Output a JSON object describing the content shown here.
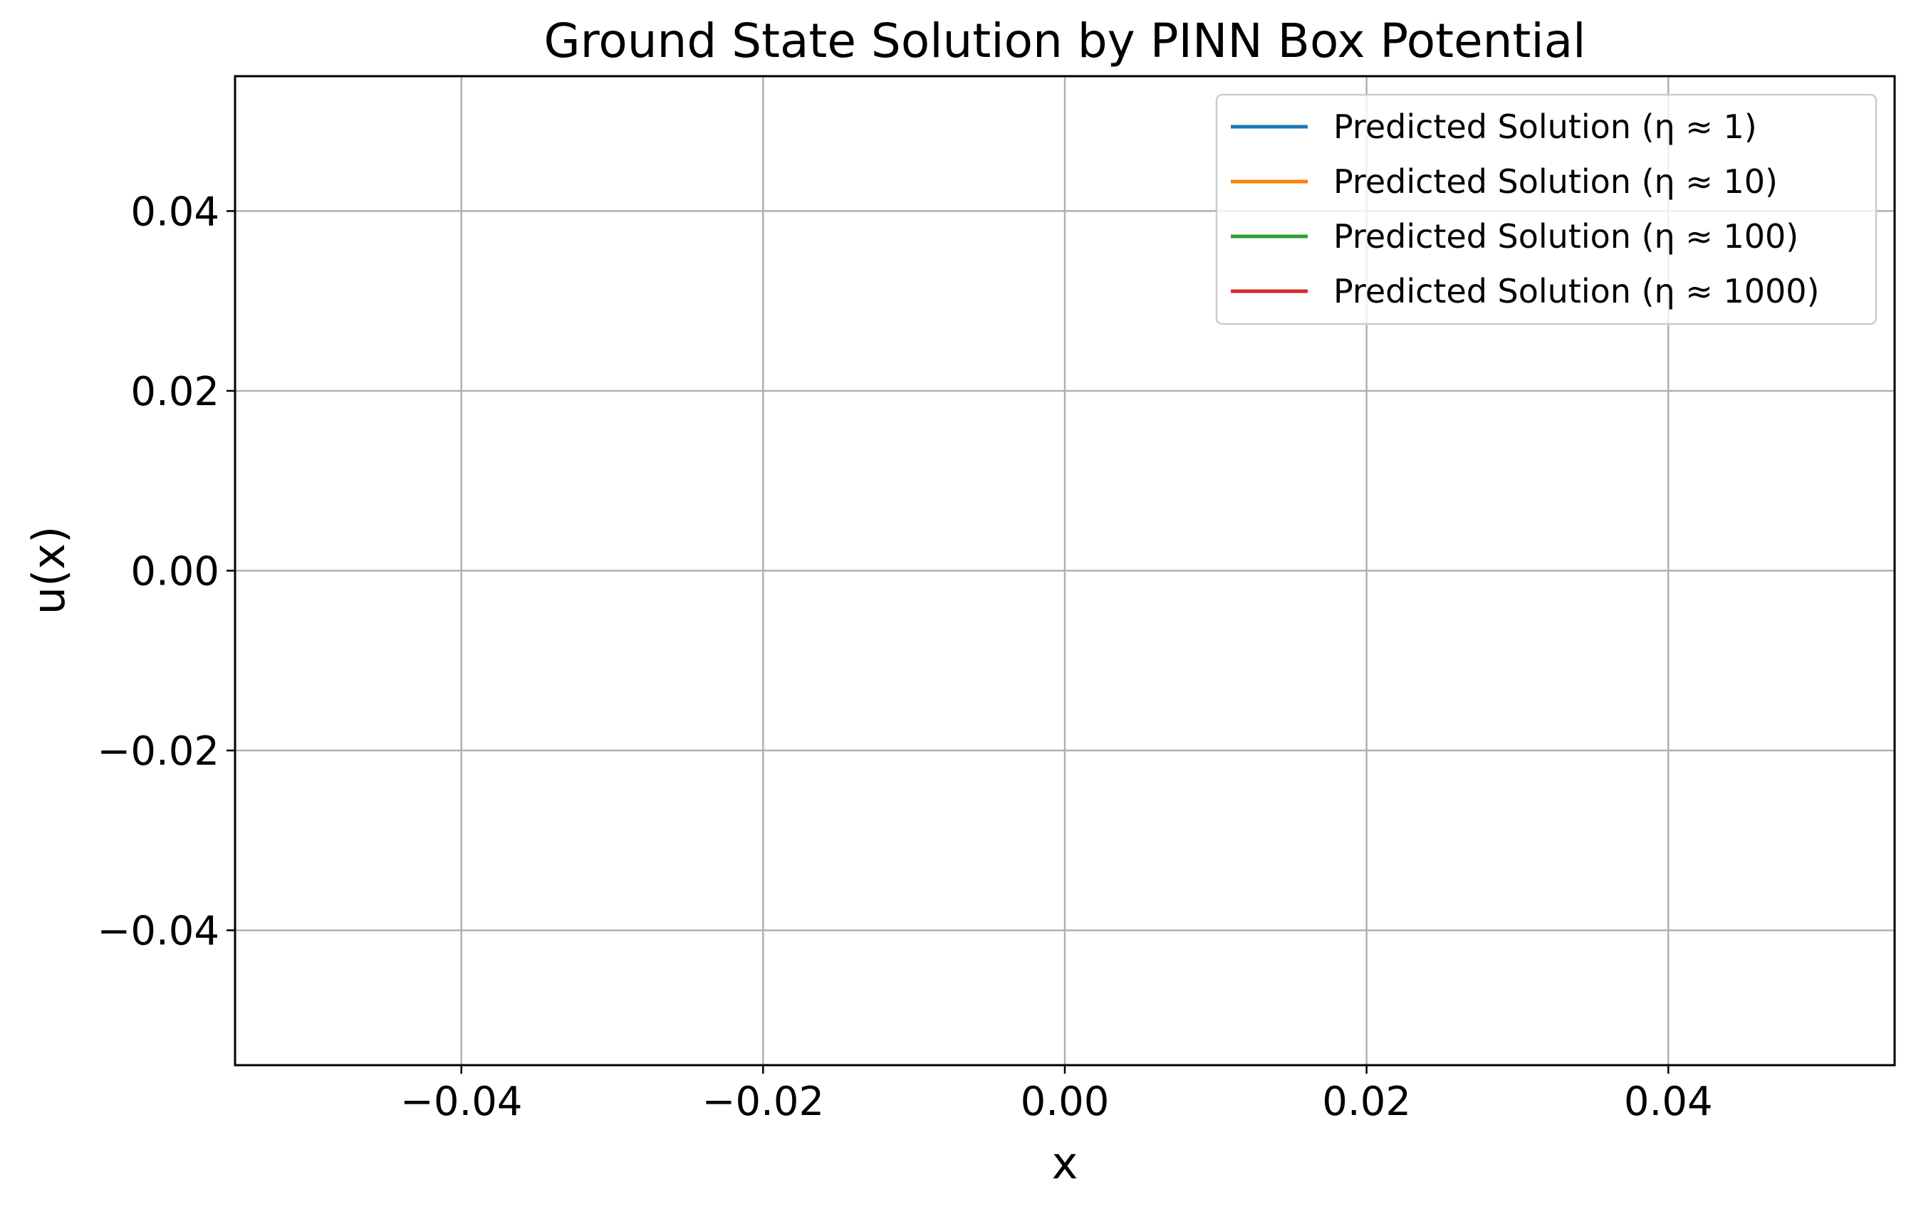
{
  "chart_data": {
    "type": "line",
    "title": "Ground State Solution by PINN Box Potential",
    "xlabel": "x",
    "ylabel": "u(x)",
    "xlim": [
      -0.055,
      0.055
    ],
    "ylim": [
      -0.055,
      0.055
    ],
    "xticks": [
      -0.04,
      -0.02,
      0.0,
      0.02,
      0.04
    ],
    "yticks": [
      -0.04,
      -0.02,
      0.0,
      0.02,
      0.04
    ],
    "xtick_labels": [
      "−0.04",
      "−0.02",
      "0.00",
      "0.02",
      "0.04"
    ],
    "ytick_labels": [
      "−0.04",
      "−0.02",
      "0.00",
      "0.02",
      "0.04"
    ],
    "grid": true,
    "legend_position": "top-right",
    "series": [
      {
        "name": "Predicted Solution (η ≈ 1)",
        "color": "#1f77b4",
        "x": [],
        "y": []
      },
      {
        "name": "Predicted Solution (η ≈ 10)",
        "color": "#ff7f0e",
        "x": [],
        "y": []
      },
      {
        "name": "Predicted Solution (η ≈ 100)",
        "color": "#2ca02c",
        "x": [],
        "y": []
      },
      {
        "name": "Predicted Solution (η ≈ 1000)",
        "color": "#d62728",
        "x": [],
        "y": []
      }
    ]
  }
}
